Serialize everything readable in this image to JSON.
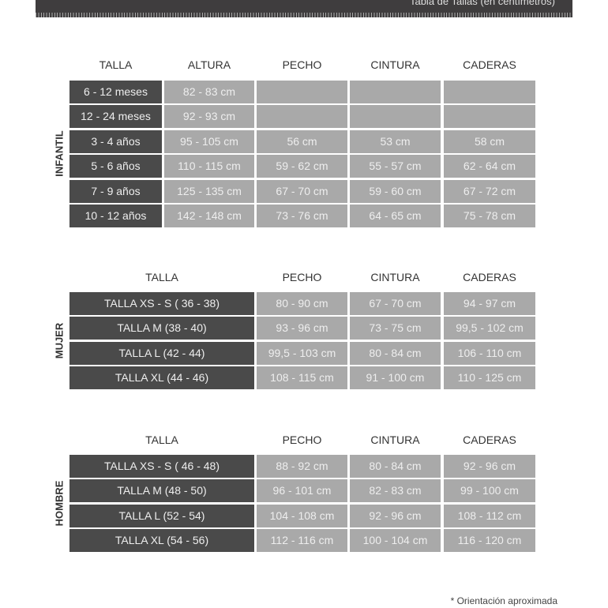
{
  "header": {
    "title": "Tabla de Tallas (en centímetros)"
  },
  "sections": [
    {
      "label": "INFANTIL",
      "columns": [
        "TALLA",
        "ALTURA",
        "PECHO",
        "CINTURA",
        "CADERAS"
      ],
      "rows": [
        [
          "6 - 12 meses",
          "82 - 83 cm",
          "",
          "",
          ""
        ],
        [
          "12 - 24 meses",
          "92 - 93 cm",
          "",
          "",
          ""
        ],
        [
          "3 - 4 años",
          "95 - 105 cm",
          "56 cm",
          "53 cm",
          "58 cm"
        ],
        [
          "5 - 6 años",
          "110 - 115 cm",
          "59 - 62 cm",
          "55 - 57 cm",
          "62 - 64 cm"
        ],
        [
          "7 - 9 años",
          "125 - 135 cm",
          "67 - 70 cm",
          "59 - 60 cm",
          "67 - 72 cm"
        ],
        [
          "10 - 12 años",
          "142 - 148 cm",
          "73 - 76 cm",
          "64 - 65 cm",
          "75 - 78 cm"
        ]
      ]
    },
    {
      "label": "MUJER",
      "columns": [
        "TALLA",
        "PECHO",
        "CINTURA",
        "CADERAS"
      ],
      "rows": [
        [
          "TALLA XS - S ( 36 - 38)",
          "80 - 90 cm",
          "67 - 70 cm",
          "94 - 97 cm"
        ],
        [
          "TALLA M (38 - 40)",
          "93 - 96 cm",
          "73 - 75 cm",
          "99,5 - 102 cm"
        ],
        [
          "TALLA L (42 - 44)",
          "99,5 - 103 cm",
          "80 - 84 cm",
          "106 - 110 cm"
        ],
        [
          "TALLA XL (44 - 46)",
          "108 - 115 cm",
          "91 - 100 cm",
          "110 - 125 cm"
        ]
      ]
    },
    {
      "label": "HOMBRE",
      "columns": [
        "TALLA",
        "PECHO",
        "CINTURA",
        "CADERAS"
      ],
      "rows": [
        [
          "TALLA XS - S ( 46 - 48)",
          "88 - 92 cm",
          "80 - 84 cm",
          "92 - 96 cm"
        ],
        [
          "TALLA M (48 - 50)",
          "96 - 101 cm",
          "82 - 83 cm",
          "99 - 100 cm"
        ],
        [
          "TALLA L (52 - 54)",
          "104 - 108 cm",
          "92 - 96 cm",
          "108 - 112 cm"
        ],
        [
          "TALLA XL (54 - 56)",
          "112 - 116 cm",
          "100 - 104 cm",
          "116 - 120 cm"
        ]
      ]
    }
  ],
  "footnote": "* Orientación aproximada",
  "colors": {
    "dark_cell": "#4a4a4a",
    "light_cell": "#a9a9a9",
    "banner": "#3f3d3e"
  }
}
